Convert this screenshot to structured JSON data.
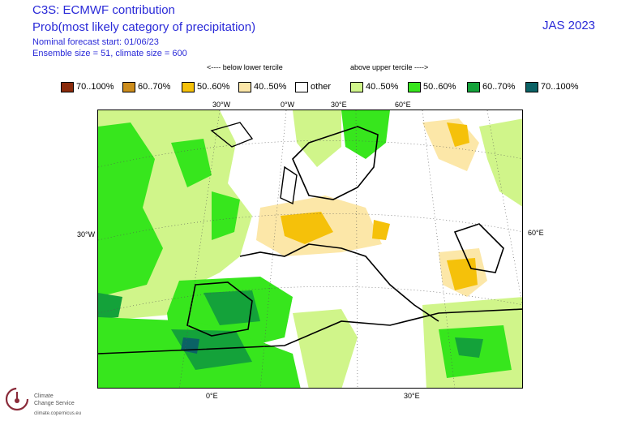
{
  "header": {
    "title": "C3S: ECMWF contribution",
    "subtitle": "Prob(most likely category of precipitation)",
    "season": "JAS 2023",
    "forecast_start": "Nominal forecast start: 01/06/23",
    "ensemble": "Ensemble size = 51, climate size = 600"
  },
  "legend": {
    "below_label": "<---- below lower tercile",
    "above_label": "above upper tercile ---->",
    "items": [
      {
        "label": "70..100%",
        "color": "#8a2b0c"
      },
      {
        "label": "60..70%",
        "color": "#cc8d1d"
      },
      {
        "label": "50..60%",
        "color": "#f5c10a"
      },
      {
        "label": "40..50%",
        "color": "#fce7a8"
      },
      {
        "label": "other",
        "color": "#ffffff"
      },
      {
        "label": "40..50%",
        "color": "#d0f58a"
      },
      {
        "label": "50..60%",
        "color": "#37e61d"
      },
      {
        "label": "60..70%",
        "color": "#14a23a"
      },
      {
        "label": "70..100%",
        "color": "#0b6265"
      }
    ]
  },
  "axes": {
    "top": [
      "30°W",
      "0°W",
      "30°E",
      "60°E"
    ],
    "left": "30°W",
    "right": "60°E",
    "bottom": [
      "0°E",
      "30°E"
    ]
  },
  "logo": {
    "line1": "Climate",
    "line2": "Change Service",
    "url": "climate.copernicus.eu"
  }
}
